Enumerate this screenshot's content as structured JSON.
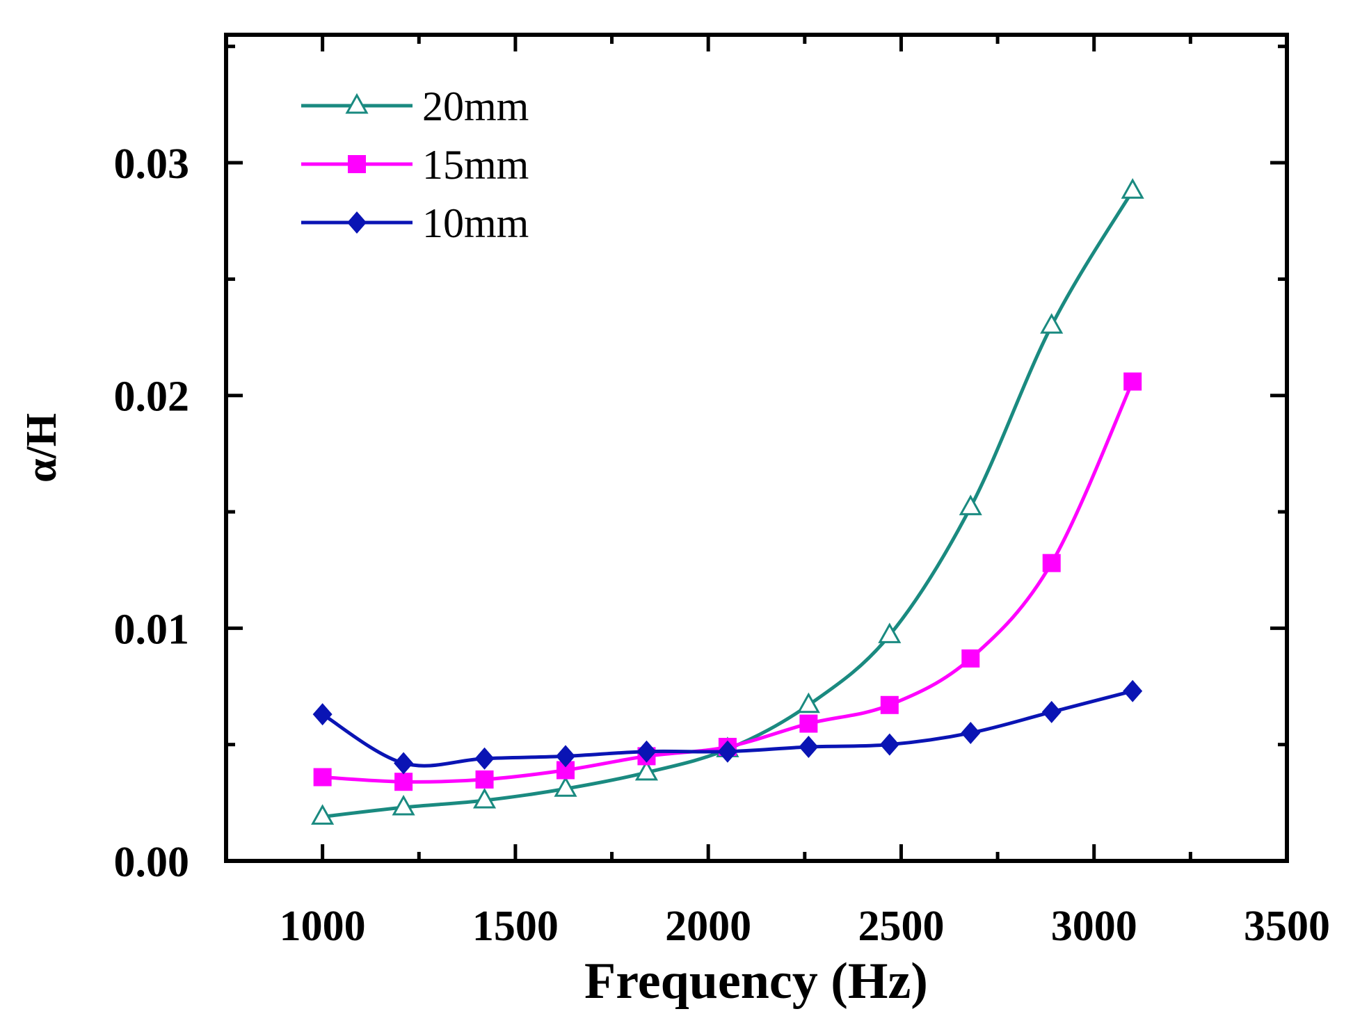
{
  "chart_data": {
    "type": "line",
    "xlabel": "Frequency (Hz)",
    "ylabel": "α/H",
    "xlim": [
      750,
      3500
    ],
    "ylim": [
      0.0,
      0.0355
    ],
    "x_ticks": [
      "1000",
      "1500",
      "2000",
      "2500",
      "3000",
      "3500"
    ],
    "y_ticks": [
      "0.00",
      "0.01",
      "0.02",
      "0.03"
    ],
    "legend_position": "top-left",
    "series": [
      {
        "name": "20mm",
        "color": "#1a8a80",
        "marker": "open-triangle",
        "x": [
          1000,
          1210,
          1420,
          1630,
          1840,
          2050,
          2260,
          2470,
          2680,
          2890,
          3100
        ],
        "y": [
          0.0019,
          0.0023,
          0.0026,
          0.0031,
          0.0038,
          0.0048,
          0.0067,
          0.0097,
          0.0152,
          0.023,
          0.0288
        ]
      },
      {
        "name": "15mm",
        "color": "#ff00ff",
        "marker": "filled-square",
        "x": [
          1000,
          1210,
          1420,
          1630,
          1840,
          2050,
          2260,
          2470,
          2680,
          2890,
          3100
        ],
        "y": [
          0.0036,
          0.0034,
          0.0035,
          0.0039,
          0.0045,
          0.0049,
          0.0059,
          0.0067,
          0.0087,
          0.0128,
          0.0206
        ]
      },
      {
        "name": "10mm",
        "color": "#0a14b4",
        "marker": "filled-diamond",
        "x": [
          1000,
          1210,
          1420,
          1630,
          1840,
          2050,
          2260,
          2470,
          2680,
          2890,
          3100
        ],
        "y": [
          0.0063,
          0.0042,
          0.0044,
          0.0045,
          0.0047,
          0.0047,
          0.0049,
          0.005,
          0.0055,
          0.0064,
          0.0073
        ]
      }
    ]
  }
}
